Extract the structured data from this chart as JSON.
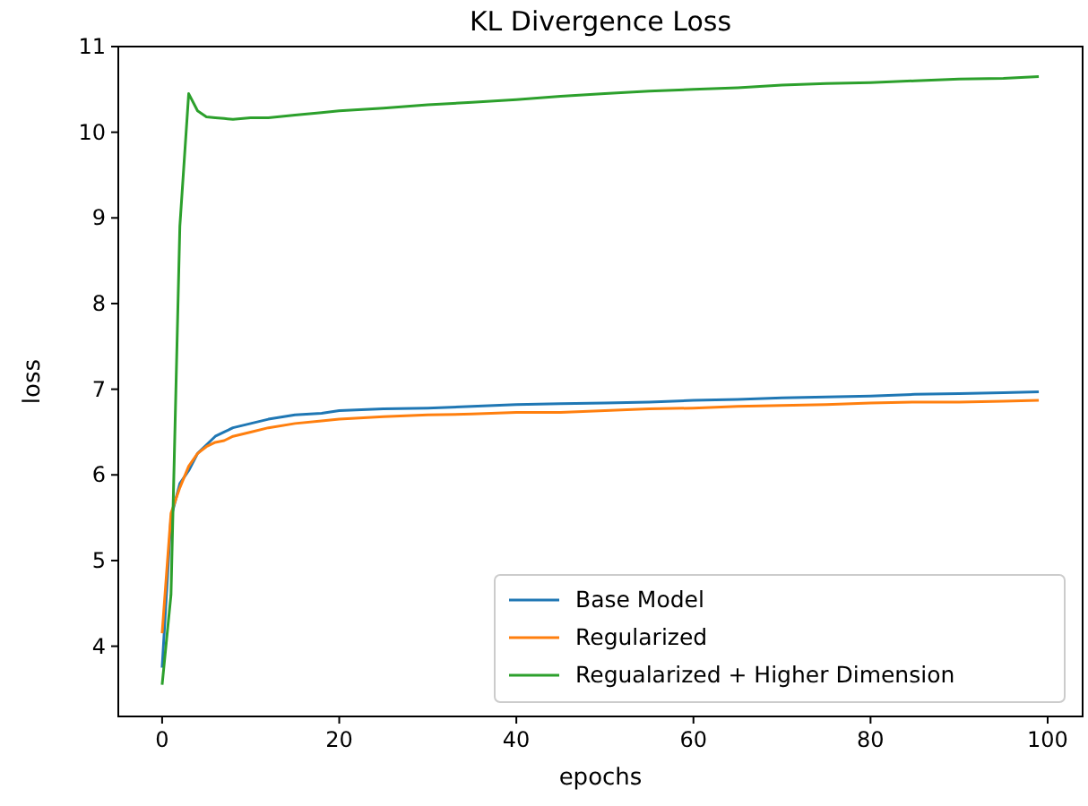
{
  "chart_data": {
    "type": "line",
    "title": "KL Divergence Loss",
    "xlabel": "epochs",
    "ylabel": "loss",
    "xlim": [
      -4.95,
      103.95
    ],
    "ylim": [
      3.18,
      11.0
    ],
    "xticks": [
      0,
      20,
      40,
      60,
      80,
      100
    ],
    "yticks": [
      4,
      5,
      6,
      7,
      8,
      9,
      10,
      11
    ],
    "grid": false,
    "legend": "bottom right",
    "marker": "none",
    "line_style": "solid",
    "x": [
      0,
      1,
      2,
      3,
      4,
      5,
      6,
      7,
      8,
      10,
      12,
      15,
      18,
      20,
      25,
      30,
      35,
      40,
      45,
      50,
      55,
      60,
      65,
      70,
      75,
      80,
      85,
      90,
      95,
      99
    ],
    "series": [
      {
        "name": "Base Model",
        "color": "#1f77b4",
        "values": [
          3.75,
          5.5,
          5.9,
          6.05,
          6.25,
          6.35,
          6.45,
          6.5,
          6.55,
          6.6,
          6.65,
          6.7,
          6.72,
          6.75,
          6.77,
          6.78,
          6.8,
          6.82,
          6.83,
          6.84,
          6.85,
          6.87,
          6.88,
          6.9,
          6.91,
          6.92,
          6.94,
          6.95,
          6.96,
          6.97
        ]
      },
      {
        "name": "Regularized",
        "color": "#ff7f0e",
        "values": [
          4.15,
          5.55,
          5.85,
          6.1,
          6.25,
          6.33,
          6.38,
          6.4,
          6.45,
          6.5,
          6.55,
          6.6,
          6.63,
          6.65,
          6.68,
          6.7,
          6.71,
          6.73,
          6.73,
          6.75,
          6.77,
          6.78,
          6.8,
          6.81,
          6.82,
          6.84,
          6.85,
          6.85,
          6.86,
          6.87
        ]
      },
      {
        "name": "Regualarized + Higher Dimension",
        "color": "#2ca02c",
        "values": [
          3.55,
          4.6,
          8.9,
          10.45,
          10.25,
          10.18,
          10.17,
          10.16,
          10.15,
          10.17,
          10.17,
          10.2,
          10.23,
          10.25,
          10.28,
          10.32,
          10.35,
          10.38,
          10.42,
          10.45,
          10.48,
          10.5,
          10.52,
          10.55,
          10.57,
          10.58,
          10.6,
          10.62,
          10.63,
          10.65
        ]
      }
    ]
  }
}
